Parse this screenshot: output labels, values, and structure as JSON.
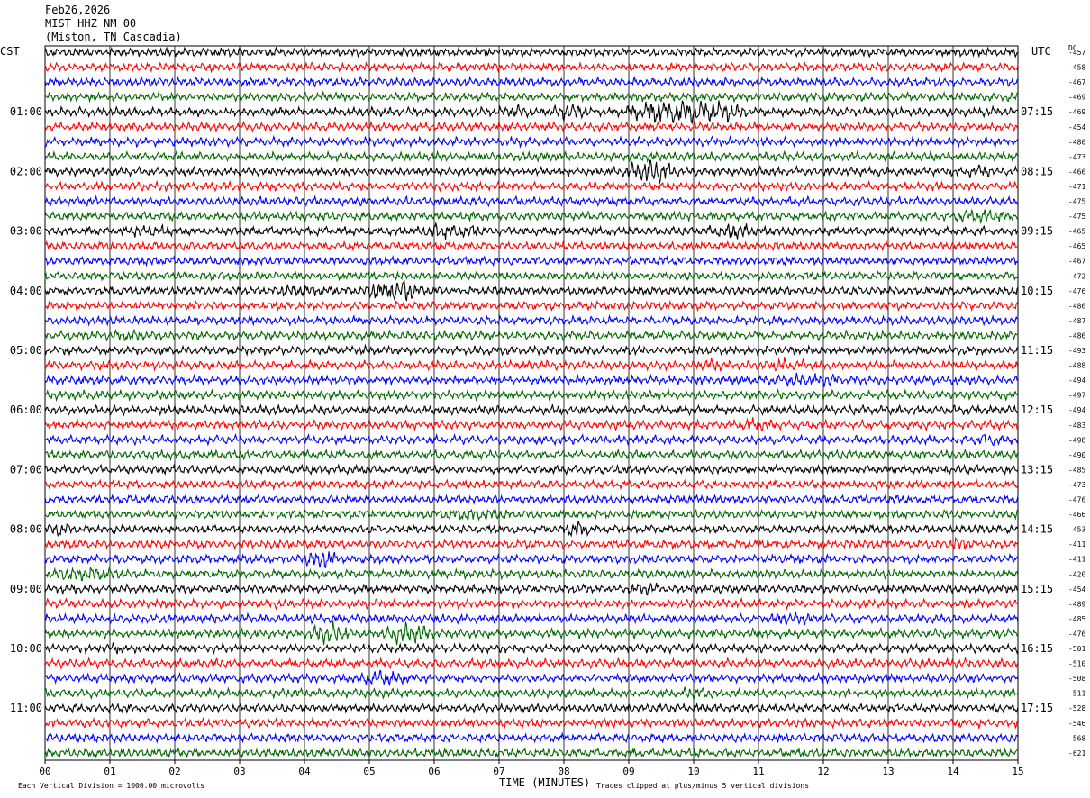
{
  "header": {
    "date": "Feb26,2026",
    "station": "MIST HHZ NM 00",
    "location": "(Miston, TN Cascadia)"
  },
  "left_tz": "CST",
  "right_tz": "UTC",
  "dc_label": "DC",
  "footer": {
    "vertical_division": "Each Vertical Division = 1000.00 microvolts",
    "clipping": "Traces clipped at plus/minus 5 vertical divisions"
  },
  "colors": [
    "#000000",
    "#ff0000",
    "#0000ff",
    "#006600"
  ],
  "chart_data": {
    "type": "line",
    "xlabel": "TIME (MINUTES)",
    "xlim": [
      0,
      15
    ],
    "x_ticks": [
      "00",
      "01",
      "02",
      "03",
      "04",
      "05",
      "06",
      "07",
      "08",
      "09",
      "10",
      "11",
      "12",
      "13",
      "14",
      "15"
    ],
    "rows_per_hour": 4,
    "left_hour_labels": [
      "01:00",
      "02:00",
      "03:00",
      "04:00",
      "05:00",
      "06:00",
      "07:00",
      "08:00",
      "09:00",
      "10:00",
      "11:00"
    ],
    "right_hour_labels": [
      "07:15",
      "08:15",
      "09:15",
      "10:15",
      "11:15",
      "12:15",
      "13:15",
      "14:15",
      "15:15",
      "16:15",
      "17:15"
    ],
    "dc_offsets": [
      "-457",
      "-458",
      "-467",
      "-469",
      "-469",
      "-454",
      "-480",
      "-473",
      "-466",
      "-471",
      "-475",
      "-475",
      "-465",
      "-465",
      "-467",
      "-472",
      "-476",
      "-486",
      "-487",
      "-486",
      "-493",
      "-488",
      "-494",
      "-497",
      "-494",
      "-483",
      "-498",
      "-490",
      "-485",
      "-473",
      "-476",
      "-466",
      "-453",
      "-411",
      "-411",
      "-420",
      "-454",
      "-489",
      "-485",
      "-476",
      "-501",
      "-510",
      "-508",
      "-511",
      "-528",
      "-546",
      "-568",
      "-621"
    ],
    "events": [
      {
        "row": 4,
        "minute": 7.0,
        "duration": 0.6,
        "amp": 2.0
      },
      {
        "row": 4,
        "minute": 7.8,
        "duration": 0.6,
        "amp": 2.4
      },
      {
        "row": 4,
        "minute": 9.0,
        "duration": 1.8,
        "amp": 3.6
      },
      {
        "row": 8,
        "minute": 9.0,
        "duration": 0.7,
        "amp": 3.6
      },
      {
        "row": 8,
        "minute": 14.2,
        "duration": 0.4,
        "amp": 1.8
      },
      {
        "row": 11,
        "minute": 14.0,
        "duration": 0.8,
        "amp": 2.2
      },
      {
        "row": 12,
        "minute": 1.2,
        "duration": 0.8,
        "amp": 1.8
      },
      {
        "row": 12,
        "minute": 5.7,
        "duration": 1.2,
        "amp": 2.4
      },
      {
        "row": 12,
        "minute": 10.2,
        "duration": 0.8,
        "amp": 2.4
      },
      {
        "row": 16,
        "minute": 3.5,
        "duration": 0.8,
        "amp": 2.0
      },
      {
        "row": 16,
        "minute": 5.0,
        "duration": 0.8,
        "amp": 3.6
      },
      {
        "row": 19,
        "minute": 0.8,
        "duration": 0.9,
        "amp": 1.6
      },
      {
        "row": 21,
        "minute": 10.0,
        "duration": 0.5,
        "amp": 2.0
      },
      {
        "row": 21,
        "minute": 11.0,
        "duration": 0.8,
        "amp": 2.0
      },
      {
        "row": 22,
        "minute": 11.2,
        "duration": 1.2,
        "amp": 2.0
      },
      {
        "row": 25,
        "minute": 10.5,
        "duration": 0.8,
        "amp": 1.8
      },
      {
        "row": 26,
        "minute": 14.3,
        "duration": 0.4,
        "amp": 2.0
      },
      {
        "row": 31,
        "minute": 6.0,
        "duration": 1.4,
        "amp": 1.8
      },
      {
        "row": 32,
        "minute": 0.0,
        "duration": 0.4,
        "amp": 2.0
      },
      {
        "row": 32,
        "minute": 8.0,
        "duration": 0.4,
        "amp": 2.4
      },
      {
        "row": 33,
        "minute": 13.8,
        "duration": 0.6,
        "amp": 1.8
      },
      {
        "row": 34,
        "minute": 4.0,
        "duration": 0.5,
        "amp": 2.6
      },
      {
        "row": 35,
        "minute": 0.0,
        "duration": 1.2,
        "amp": 2.2
      },
      {
        "row": 36,
        "minute": 9.0,
        "duration": 0.5,
        "amp": 2.2
      },
      {
        "row": 38,
        "minute": 11.0,
        "duration": 1.0,
        "amp": 1.8
      },
      {
        "row": 39,
        "minute": 4.1,
        "duration": 0.6,
        "amp": 3.0
      },
      {
        "row": 39,
        "minute": 5.2,
        "duration": 0.8,
        "amp": 3.0
      },
      {
        "row": 40,
        "minute": 0.8,
        "duration": 0.5,
        "amp": 1.8
      },
      {
        "row": 42,
        "minute": 4.8,
        "duration": 0.8,
        "amp": 2.2
      },
      {
        "row": 43,
        "minute": 9.8,
        "duration": 0.6,
        "amp": 2.0
      }
    ]
  }
}
